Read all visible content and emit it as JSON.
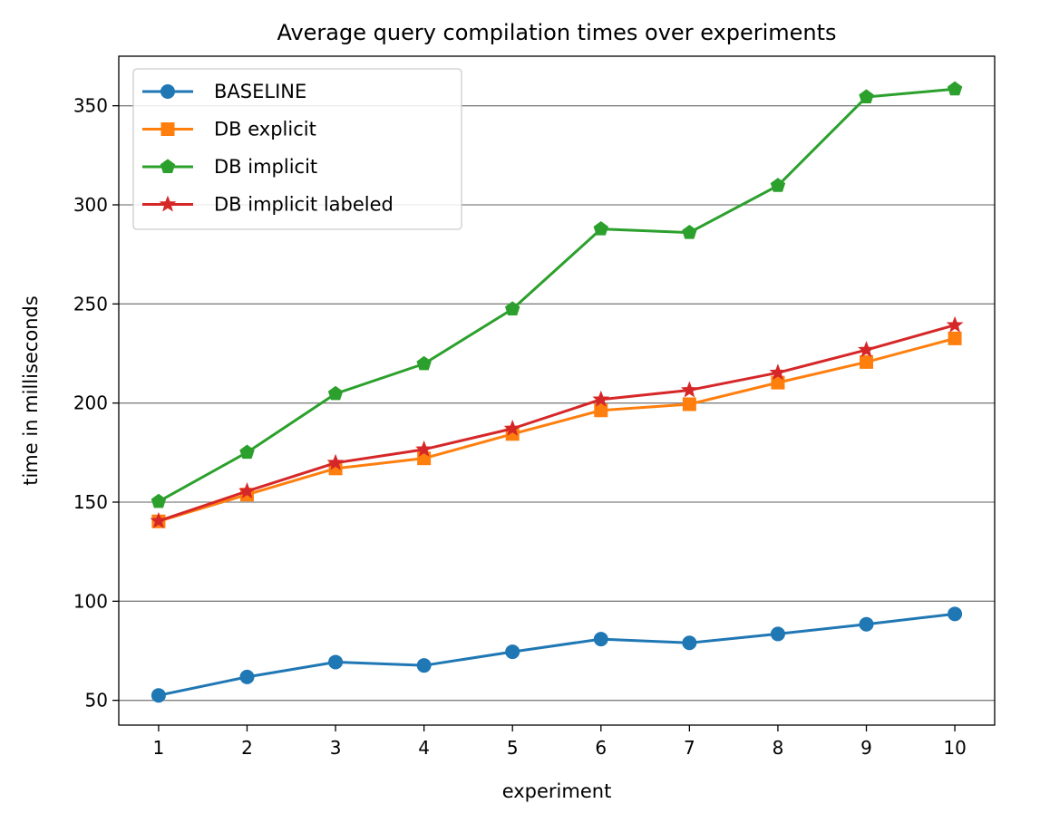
{
  "chart_data": {
    "type": "line",
    "title": "Average query compilation times over experiments",
    "xlabel": "experiment",
    "ylabel": "time in milliseconds",
    "x": [
      1,
      2,
      3,
      4,
      5,
      6,
      7,
      8,
      9,
      10
    ],
    "xlim": [
      0.55,
      10.45
    ],
    "ylim": [
      37.5,
      375
    ],
    "yticks": [
      50,
      100,
      150,
      200,
      250,
      300,
      350
    ],
    "grid": "horizontal",
    "legend_position": "top-left",
    "series": [
      {
        "name": "BASELINE",
        "color": "#1f77b4",
        "marker": "circle",
        "values": [
          52.5,
          61.8,
          69.3,
          67.6,
          74.5,
          80.9,
          79.0,
          83.5,
          88.4,
          93.6
        ]
      },
      {
        "name": "DB explicit",
        "color": "#ff7f0e",
        "marker": "square",
        "values": [
          140.3,
          153.8,
          167.0,
          172.1,
          184.4,
          196.3,
          199.4,
          210.3,
          220.7,
          232.6
        ]
      },
      {
        "name": "DB implicit",
        "color": "#2ca02c",
        "marker": "pentagon",
        "values": [
          150.3,
          175.1,
          204.7,
          219.8,
          247.4,
          287.8,
          286.0,
          309.7,
          354.4,
          358.4
        ]
      },
      {
        "name": "DB implicit labeled",
        "color": "#d62728",
        "marker": "star",
        "values": [
          140.5,
          155.5,
          169.8,
          176.6,
          187.1,
          201.8,
          206.5,
          215.3,
          226.8,
          239.3
        ]
      }
    ]
  }
}
